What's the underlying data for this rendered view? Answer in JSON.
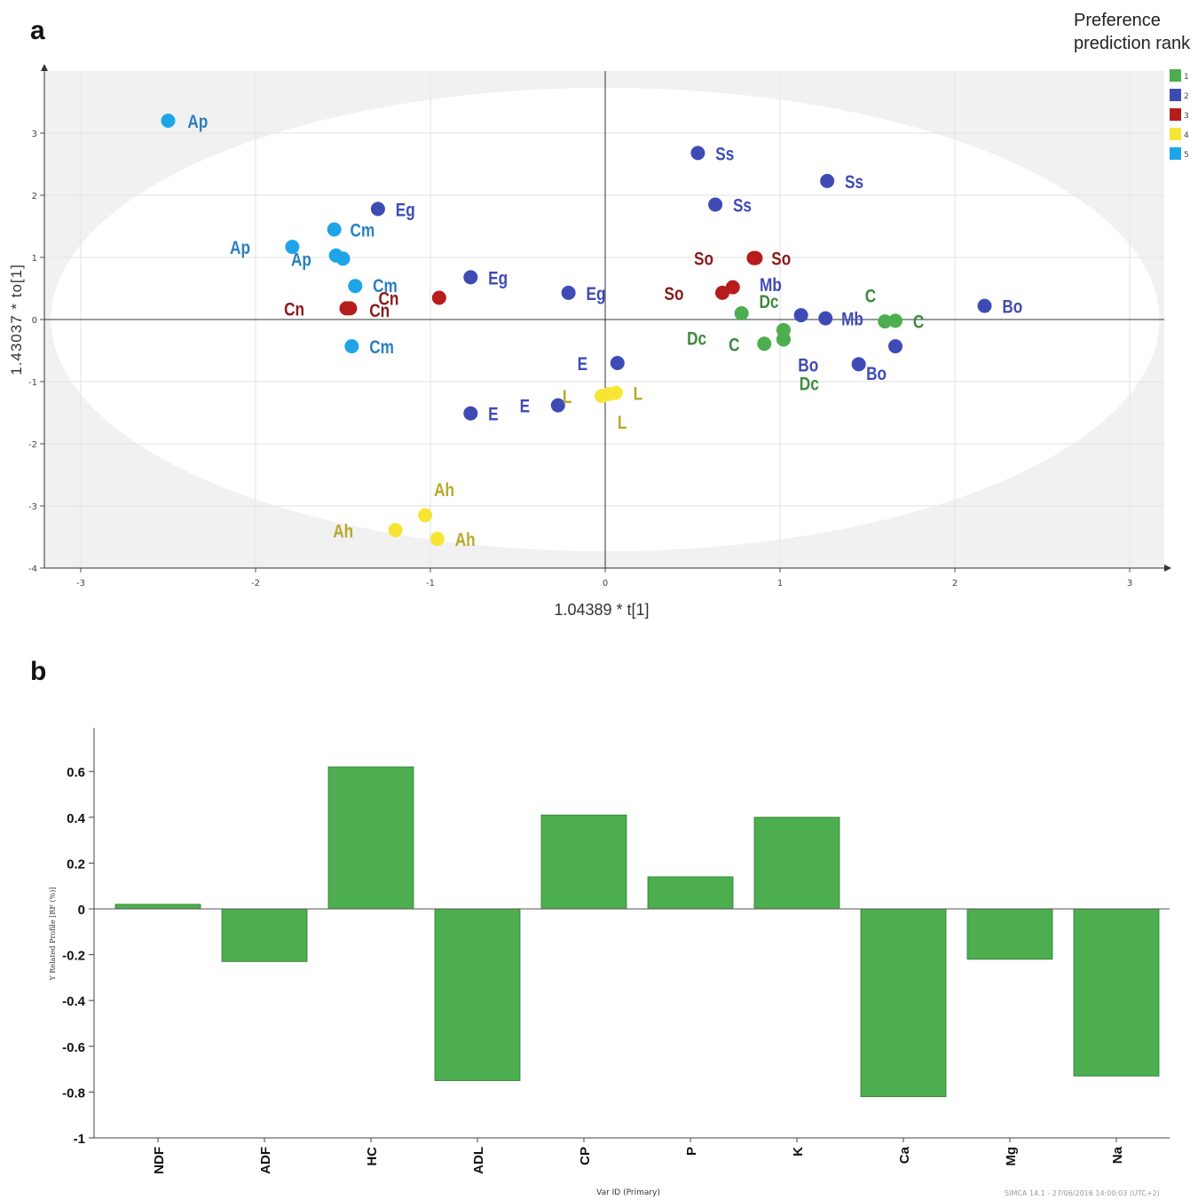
{
  "panel_a_label": "a",
  "panel_b_label": "b",
  "footer_note": "SIMCA 14.1 - 27/06/2016 14:00:03 (UTC+2)",
  "chart_data": [
    {
      "type": "scatter",
      "panel": "a",
      "xlabel": "1.04389 * t[1]",
      "ylabel": "1.43037 * to[1]",
      "xlim": [
        -3.2,
        3.2
      ],
      "ylim": [
        -4,
        4
      ],
      "x_ticks": [
        -3,
        -2,
        -1,
        0,
        1,
        2,
        3
      ],
      "y_ticks": [
        -4,
        -3,
        -2,
        -1,
        0,
        1,
        2,
        3
      ],
      "ellipse": {
        "cx": 0,
        "cy": 0,
        "rx": 3.17,
        "ry": 3.73
      },
      "legend": {
        "title_lines": [
          "Preference",
          "prediction rank"
        ],
        "placement": "top-right",
        "entries": [
          {
            "label": "1",
            "color": "#4cae4f"
          },
          {
            "label": "2",
            "color": "#3f4bb5"
          },
          {
            "label": "3",
            "color": "#b71c1c"
          },
          {
            "label": "4",
            "color": "#f7e534"
          },
          {
            "label": "5",
            "color": "#1ea5e8"
          }
        ]
      },
      "rank_colors": {
        "1": "#4cae4f",
        "2": "#3f4bb5",
        "3": "#b71c1c",
        "4": "#f7e534",
        "5": "#1ea5e8"
      },
      "label_colors": {
        "1": "#3d8a3f",
        "2": "#3f4bb5",
        "3": "#8b1a1a",
        "4": "#b8a82a",
        "5": "#2b7fc0"
      },
      "points": [
        {
          "label": "Ap",
          "x": -2.5,
          "y": 3.2,
          "rank": 5,
          "lx": 0.06,
          "ly": 0
        },
        {
          "label": "Ap",
          "x": -1.79,
          "y": 1.17,
          "rank": 5,
          "lx": -0.2,
          "ly": 0
        },
        {
          "label": "Ap",
          "x": -1.54,
          "y": 1.03,
          "rank": 5,
          "lx": -0.1,
          "ly": -0.05
        },
        {
          "label": "",
          "x": -1.5,
          "y": 0.98,
          "rank": 5,
          "lx": 0,
          "ly": 0
        },
        {
          "label": "Cm",
          "x": -1.43,
          "y": 0.54,
          "rank": 5,
          "lx": 0.05,
          "ly": 0.02
        },
        {
          "label": "Cm",
          "x": -1.45,
          "y": -0.43,
          "rank": 5,
          "lx": 0.05,
          "ly": 0
        },
        {
          "label": "Cm",
          "x": -1.55,
          "y": 1.45,
          "rank": 5,
          "lx": 0.04,
          "ly": 0.0
        },
        {
          "label": "Eg",
          "x": -1.3,
          "y": 1.78,
          "rank": 2,
          "lx": 0.05,
          "ly": 0
        },
        {
          "label": "Eg",
          "x": -0.77,
          "y": 0.68,
          "rank": 2,
          "lx": 0.05,
          "ly": 0
        },
        {
          "label": "Eg",
          "x": -0.21,
          "y": 0.43,
          "rank": 2,
          "lx": 0.05,
          "ly": 0
        },
        {
          "label": "Cn",
          "x": -1.48,
          "y": 0.18,
          "rank": 3,
          "lx": -0.2,
          "ly": 0
        },
        {
          "label": "Cn",
          "x": -1.46,
          "y": 0.18,
          "rank": 3,
          "lx": 0.06,
          "ly": -0.02
        },
        {
          "label": "Cn",
          "x": -0.95,
          "y": 0.35,
          "rank": 3,
          "lx": -0.19,
          "ly": 0
        },
        {
          "label": "E",
          "x": -0.77,
          "y": -1.51,
          "rank": 2,
          "lx": 0.05,
          "ly": 0
        },
        {
          "label": "E",
          "x": -0.27,
          "y": -1.38,
          "rank": 2,
          "lx": -0.12,
          "ly": 0
        },
        {
          "label": "E",
          "x": 0.07,
          "y": -0.7,
          "rank": 2,
          "lx": -0.13,
          "ly": 0
        },
        {
          "label": "L",
          "x": -0.02,
          "y": -1.23,
          "rank": 4,
          "lx": -0.13,
          "ly": 0
        },
        {
          "label": "L",
          "x": 0.02,
          "y": -1.2,
          "rank": 4,
          "lx": 0,
          "ly": -0.44
        },
        {
          "label": "L",
          "x": 0.06,
          "y": -1.18,
          "rank": 4,
          "lx": 0.05,
          "ly": 0
        },
        {
          "label": "Ah",
          "x": -1.03,
          "y": -3.15,
          "rank": 4,
          "lx": 0,
          "ly": 0.42
        },
        {
          "label": "Ah",
          "x": -1.2,
          "y": -3.39,
          "rank": 4,
          "lx": -0.2,
          "ly": 0
        },
        {
          "label": "Ah",
          "x": -0.96,
          "y": -3.53,
          "rank": 4,
          "lx": 0.05,
          "ly": 0
        },
        {
          "label": "Ss",
          "x": 0.53,
          "y": 2.68,
          "rank": 2,
          "lx": 0.05,
          "ly": 0
        },
        {
          "label": "Ss",
          "x": 1.27,
          "y": 2.23,
          "rank": 2,
          "lx": 0.05,
          "ly": 0
        },
        {
          "label": "Ss",
          "x": 0.63,
          "y": 1.85,
          "rank": 2,
          "lx": 0.05,
          "ly": 0
        },
        {
          "label": "So",
          "x": 0.85,
          "y": 0.99,
          "rank": 3,
          "lx": -0.19,
          "ly": 0
        },
        {
          "label": "So",
          "x": 0.86,
          "y": 0.99,
          "rank": 3,
          "lx": 0.04,
          "ly": 0
        },
        {
          "label": "So",
          "x": 0.67,
          "y": 0.43,
          "rank": 3,
          "lx": -0.18,
          "ly": 0
        },
        {
          "label": "",
          "x": 0.73,
          "y": 0.52,
          "rank": 3,
          "lx": 0,
          "ly": 0
        },
        {
          "label": "Dc",
          "x": 0.78,
          "y": 0.1,
          "rank": 1,
          "lx": 0.05,
          "ly": 0.2
        },
        {
          "label": "Dc",
          "x": 1.02,
          "y": -0.17,
          "rank": 1,
          "lx": -0.4,
          "ly": -0.12
        },
        {
          "label": "",
          "x": 1.02,
          "y": -0.32,
          "rank": 1,
          "lx": 0,
          "ly": 0
        },
        {
          "label": "C",
          "x": 0.91,
          "y": -0.39,
          "rank": 1,
          "lx": -0.1,
          "ly": 0
        },
        {
          "label": "Dc",
          "x": 1.02,
          "y": -0.32,
          "rank": 1,
          "lx": 0.04,
          "ly": -0.7
        },
        {
          "label": "Mb",
          "x": 1.12,
          "y": 0.07,
          "rank": 2,
          "lx": -0.07,
          "ly": 0.5
        },
        {
          "label": "Mb",
          "x": 1.26,
          "y": 0.02,
          "rank": 2,
          "lx": 0.04,
          "ly": 0
        },
        {
          "label": "Bo",
          "x": 1.45,
          "y": -0.72,
          "rank": 2,
          "lx": -0.19,
          "ly": 0
        },
        {
          "label": "Bo",
          "x": 1.66,
          "y": -0.43,
          "rank": 2,
          "lx": -0.01,
          "ly": -0.43
        },
        {
          "label": "Bo",
          "x": 2.17,
          "y": 0.22,
          "rank": 2,
          "lx": 0.05,
          "ly": 0
        },
        {
          "label": "C",
          "x": 1.6,
          "y": -0.03,
          "rank": 1,
          "lx": -0.01,
          "ly": 0.42
        },
        {
          "label": "C",
          "x": 1.66,
          "y": -0.02,
          "rank": 1,
          "lx": 0.05,
          "ly": 0
        }
      ]
    },
    {
      "type": "bar",
      "panel": "b",
      "categories": [
        "NDF",
        "ADF",
        "HC",
        "ADL",
        "CP",
        "P",
        "K",
        "Ca",
        "Mg",
        "Na"
      ],
      "values": [
        0.02,
        -0.23,
        0.62,
        -0.75,
        0.41,
        0.14,
        0.4,
        -0.82,
        -0.22,
        -0.73
      ],
      "ylim": [
        -1,
        0.8
      ],
      "y_ticks": [
        -1,
        -0.8,
        -0.6,
        -0.4,
        -0.2,
        0,
        0.2,
        0.4,
        0.6
      ],
      "y_tick_labels": [
        "-1",
        "-0.8",
        "-0.6",
        "-0.4",
        "-0.2",
        "0",
        "0.2",
        "0.4",
        "0.6"
      ],
      "xlabel": "Var ID (Primary)",
      "ylabel": "Y Related Profile [RF (%)]",
      "bar_color": "#4cae4f",
      "grid": false
    }
  ]
}
